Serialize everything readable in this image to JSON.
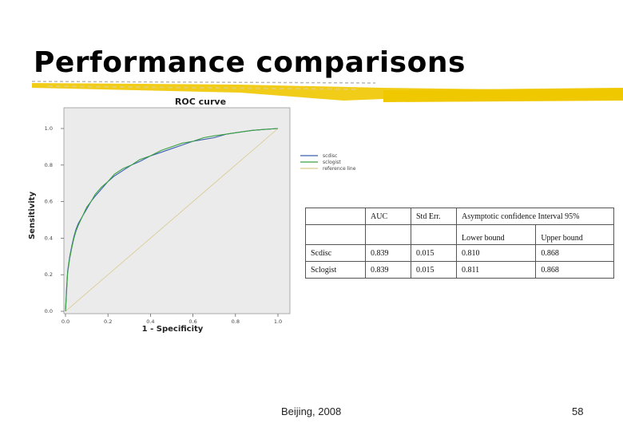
{
  "slide": {
    "title": "Performance comparisons",
    "footer_center": "Beijing, 2008",
    "page_number": "58",
    "accent_color": "#f0c800"
  },
  "chart_data": {
    "type": "line",
    "title": "ROC curve",
    "xlabel": "1 - Specificity",
    "ylabel": "Sensitivity",
    "xlim": [
      0,
      1
    ],
    "ylim": [
      0,
      1
    ],
    "xticks": [
      "0.0",
      "0.2",
      "0.4",
      "0.6",
      "0.8",
      "1.0"
    ],
    "yticks": [
      "0.0",
      "0.2",
      "0.4",
      "0.6",
      "0.8",
      "1.0"
    ],
    "grid": false,
    "legend_position": "right",
    "series": [
      {
        "name": "scdisc",
        "color": "#3a5fb0",
        "x": [
          0,
          0.005,
          0.01,
          0.02,
          0.03,
          0.04,
          0.05,
          0.06,
          0.08,
          0.1,
          0.12,
          0.14,
          0.17,
          0.2,
          0.23,
          0.27,
          0.31,
          0.35,
          0.4,
          0.45,
          0.5,
          0.55,
          0.6,
          0.65,
          0.7,
          0.76,
          0.82,
          0.88,
          0.94,
          1.0
        ],
        "y": [
          0,
          0.12,
          0.22,
          0.3,
          0.36,
          0.41,
          0.45,
          0.48,
          0.52,
          0.56,
          0.6,
          0.63,
          0.67,
          0.71,
          0.74,
          0.77,
          0.8,
          0.82,
          0.85,
          0.87,
          0.89,
          0.91,
          0.93,
          0.94,
          0.95,
          0.97,
          0.98,
          0.99,
          0.995,
          1.0
        ]
      },
      {
        "name": "sclogist",
        "color": "#3aa040",
        "x": [
          0,
          0.005,
          0.01,
          0.02,
          0.03,
          0.04,
          0.05,
          0.06,
          0.08,
          0.1,
          0.12,
          0.14,
          0.17,
          0.2,
          0.23,
          0.27,
          0.31,
          0.35,
          0.4,
          0.45,
          0.5,
          0.55,
          0.6,
          0.65,
          0.7,
          0.76,
          0.82,
          0.88,
          0.94,
          1.0
        ],
        "y": [
          0,
          0.1,
          0.21,
          0.29,
          0.35,
          0.4,
          0.44,
          0.47,
          0.52,
          0.57,
          0.6,
          0.64,
          0.68,
          0.71,
          0.75,
          0.78,
          0.8,
          0.83,
          0.85,
          0.88,
          0.9,
          0.92,
          0.93,
          0.95,
          0.96,
          0.97,
          0.98,
          0.99,
          0.995,
          1.0
        ]
      },
      {
        "name": "reference line",
        "color": "#d9c98a",
        "x": [
          0,
          1
        ],
        "y": [
          0,
          1
        ]
      }
    ]
  },
  "table": {
    "headers": [
      "",
      "AUC",
      "Std Err.",
      "Asymptotic confidence Interval 95%"
    ],
    "subheaders": [
      "Lower bound",
      "Upper bound"
    ],
    "rows": [
      [
        "Scdisc",
        "0.839",
        "0.015",
        "0.810",
        "0.868"
      ],
      [
        "Sclogist",
        "0.839",
        "0.015",
        "0.811",
        "0.868"
      ]
    ]
  }
}
